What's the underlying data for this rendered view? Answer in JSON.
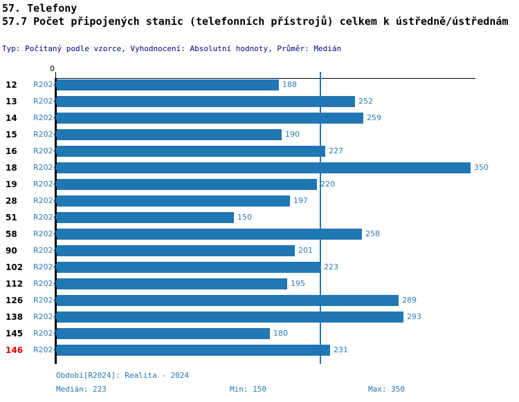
{
  "header": {
    "title": "57. Telefony",
    "subtitle": "57.7 Počet připojených stanic (telefonních přístrojů) celkem k ústředně/ústřednám",
    "meta": "Typ: Počítaný podle vzorce, Vyhodnocení: Absolutní hodnoty, Průměr: Medián"
  },
  "chart_data": {
    "type": "bar",
    "orientation": "horizontal",
    "title": "57.7 Počet připojených stanic (telefonních přístrojů) celkem k ústředně/ústřednám",
    "categories": [
      "12",
      "13",
      "14",
      "15",
      "16",
      "18",
      "19",
      "28",
      "51",
      "58",
      "90",
      "102",
      "112",
      "126",
      "138",
      "145",
      "146"
    ],
    "series": [
      {
        "name": "R2024",
        "values": [
          188,
          252,
          259,
          190,
          227,
          350,
          220,
          197,
          150,
          258,
          201,
          223,
          195,
          289,
          293,
          180,
          231
        ]
      }
    ],
    "axis_origin_label": "0",
    "xlim": [
      0,
      354
    ],
    "grid": false,
    "value_labels": true,
    "median": 223,
    "min": 150,
    "max": 350,
    "highlight_category": "146",
    "colors": {
      "bar": "#2176b4",
      "median_line": "#2176b4",
      "value_label": "#2b7bb9",
      "series_label": "#2b7bb9",
      "category": "#000000",
      "highlight": "#dd0000",
      "axis": "#000000",
      "footer_text": "#2176b4",
      "meta_text": "#000080"
    }
  },
  "footer": {
    "period": "Období[R2024]: Realita - 2024",
    "median": "Medián: 223",
    "min": "Min: 150",
    "max": "Max: 350"
  }
}
